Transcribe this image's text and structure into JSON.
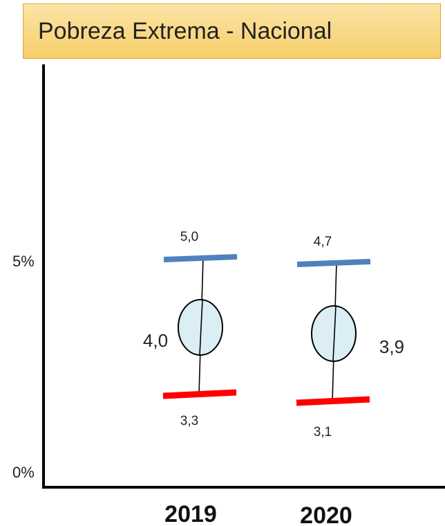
{
  "chart_data": {
    "type": "errorbar",
    "title": "Pobreza Extrema - Nacional",
    "xlabel": "",
    "ylabel": "",
    "y_ticks": [
      "0%",
      "5%"
    ],
    "categories": [
      "2019",
      "2020"
    ],
    "points": [
      {
        "category": "2019",
        "estimate": 4.0,
        "lower": 3.3,
        "upper": 5.0,
        "estimate_label": "4,0",
        "lower_label": "3,3",
        "upper_label": "5,0"
      },
      {
        "category": "2020",
        "estimate": 3.9,
        "lower": 3.1,
        "upper": 4.7,
        "estimate_label": "3,9",
        "lower_label": "3,1",
        "upper_label": "4,7"
      }
    ],
    "colors": {
      "upper": "#4f81bd",
      "lower": "#ff0000",
      "marker_fill": "#dbeef4",
      "marker_stroke": "#000000"
    },
    "grid": false,
    "legend": "none"
  }
}
